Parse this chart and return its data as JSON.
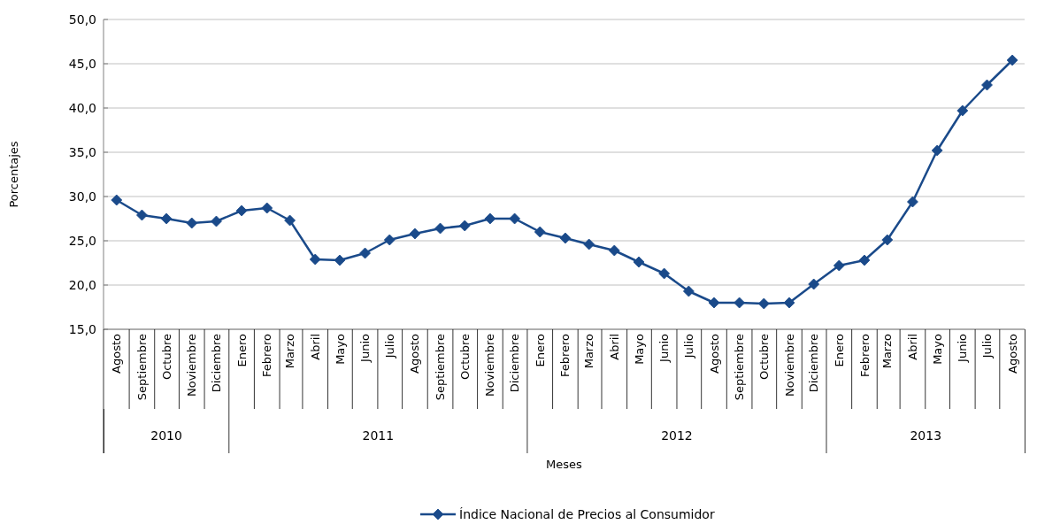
{
  "chart_data": {
    "type": "line",
    "xlabel": "Meses",
    "ylabel": "Porcentajes",
    "x": [
      "2010-08",
      "2010-09",
      "2010-10",
      "2010-11",
      "2010-12",
      "2011-01",
      "2011-02",
      "2011-03",
      "2011-04",
      "2011-05",
      "2011-06",
      "2011-07",
      "2011-08",
      "2011-09",
      "2011-10",
      "2011-11",
      "2011-12",
      "2012-01",
      "2012-02",
      "2012-03",
      "2012-04",
      "2012-05",
      "2012-06",
      "2012-07",
      "2012-08",
      "2012-09",
      "2012-10",
      "2012-11",
      "2012-12",
      "2013-01",
      "2013-02",
      "2013-03",
      "2013-04",
      "2013-05",
      "2013-06",
      "2013-07",
      "2013-08"
    ],
    "xlim": [
      "2010-07-16",
      "2013-08-16"
    ],
    "xticks": [
      {
        "value": "2010-08",
        "label": "Agosto"
      },
      {
        "value": "2010-09",
        "label": "Septiembre"
      },
      {
        "value": "2010-10",
        "label": "Octubre"
      },
      {
        "value": "2010-11",
        "label": "Noviembre"
      },
      {
        "value": "2010-12",
        "label": "Diciembre"
      },
      {
        "value": "2011-01",
        "label": "Enero"
      },
      {
        "value": "2011-02",
        "label": "Febrero"
      },
      {
        "value": "2011-03",
        "label": "Marzo"
      },
      {
        "value": "2011-04",
        "label": "Abril"
      },
      {
        "value": "2011-05",
        "label": "Mayo"
      },
      {
        "value": "2011-06",
        "label": "Junio"
      },
      {
        "value": "2011-07",
        "label": "Julio"
      },
      {
        "value": "2011-08",
        "label": "Agosto"
      },
      {
        "value": "2011-09",
        "label": "Septiembre"
      },
      {
        "value": "2011-10",
        "label": "Octubre"
      },
      {
        "value": "2011-11",
        "label": "Noviembre"
      },
      {
        "value": "2011-12",
        "label": "Diciembre"
      },
      {
        "value": "2012-01",
        "label": "Enero"
      },
      {
        "value": "2012-02",
        "label": "Febrero"
      },
      {
        "value": "2012-03",
        "label": "Marzo"
      },
      {
        "value": "2012-04",
        "label": "Abril"
      },
      {
        "value": "2012-05",
        "label": "Mayo"
      },
      {
        "value": "2012-06",
        "label": "Junio"
      },
      {
        "value": "2012-07",
        "label": "Julio"
      },
      {
        "value": "2012-08",
        "label": "Agosto"
      },
      {
        "value": "2012-09",
        "label": "Septiembre"
      },
      {
        "value": "2012-10",
        "label": "Octubre"
      },
      {
        "value": "2012-11",
        "label": "Noviembre"
      },
      {
        "value": "2012-12",
        "label": "Diciembre"
      },
      {
        "value": "2013-01",
        "label": "Enero"
      },
      {
        "value": "2013-02",
        "label": "Febrero"
      },
      {
        "value": "2013-03",
        "label": "Marzo"
      },
      {
        "value": "2013-04",
        "label": "Abril"
      },
      {
        "value": "2013-05",
        "label": "Mayo"
      },
      {
        "value": "2013-06",
        "label": "Junio"
      },
      {
        "value": "2013-07",
        "label": "Julio"
      },
      {
        "value": "2013-08",
        "label": "Agosto"
      }
    ],
    "annotations": [
      "2010",
      "2011",
      "2012",
      "2013"
    ],
    "ylim": [
      15,
      50
    ],
    "yticks": [
      {
        "value": 15,
        "label": "15,0"
      },
      {
        "value": 20,
        "label": "20,0"
      },
      {
        "value": 25,
        "label": "25,0"
      },
      {
        "value": 30,
        "label": "30,0"
      },
      {
        "value": 35,
        "label": "35,0"
      },
      {
        "value": 40,
        "label": "40,0"
      },
      {
        "value": 45,
        "label": "45,0"
      },
      {
        "value": 50,
        "label": "50,0"
      }
    ],
    "grid": "y",
    "legend": "bottom",
    "marker": "diamond",
    "line_style": "solid",
    "series": [
      {
        "name": "Índice Nacional de Precios al Consumidor",
        "color": "#1a4a8a",
        "values": [
          29.6,
          27.9,
          27.5,
          27.0,
          27.2,
          28.4,
          28.7,
          27.3,
          22.9,
          22.8,
          23.6,
          25.1,
          25.8,
          26.4,
          26.7,
          27.5,
          27.5,
          26.0,
          25.3,
          24.6,
          23.9,
          22.6,
          21.3,
          19.3,
          18.0,
          18.0,
          17.9,
          18.0,
          20.1,
          22.2,
          22.8,
          25.1,
          29.4,
          35.2,
          39.7,
          42.6,
          45.4
        ]
      }
    ]
  }
}
